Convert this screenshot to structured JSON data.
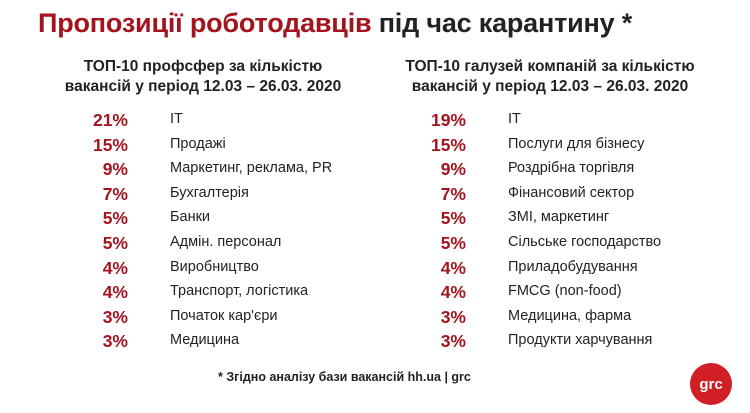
{
  "title": {
    "accent": "Пропозиції роботодавців",
    "rest": " під час карантину *"
  },
  "chart_data": [
    {
      "type": "table",
      "title": "ТОП-10 профсфер за кількістю вакансій у період 12.03 – 26.03. 2020",
      "title_lines": [
        "ТОП-10 профсфер за кількістю",
        "вакансій у період 12.03 – 26.03. 2020"
      ],
      "categories": [
        "IT",
        "Продажі",
        "Маркетинг, реклама, PR",
        "Бухгалтерія",
        "Банки",
        "Адмін. персонал",
        "Виробництво",
        "Транспорт, логістика",
        "Початок кар'єри",
        "Медицина"
      ],
      "values": [
        21,
        15,
        9,
        7,
        5,
        5,
        4,
        4,
        3,
        3
      ],
      "value_labels": [
        "21%",
        "15%",
        "9%",
        "7%",
        "5%",
        "5%",
        "4%",
        "4%",
        "3%",
        "3%"
      ]
    },
    {
      "type": "table",
      "title": "ТОП-10 галузей компаній за кількістю вакансій у період 12.03 – 26.03. 2020",
      "title_lines": [
        "ТОП-10 галузей компаній за кількістю",
        "вакансій у період 12.03 – 26.03. 2020"
      ],
      "categories": [
        "IT",
        "Послуги для бізнесу",
        "Роздрібна торгівля",
        "Фінансовий сектор",
        "ЗМІ, маркетинг",
        "Сільське господарство",
        "Приладобудування",
        "FMCG (non-food)",
        "Медицина, фарма",
        "Продукти харчування"
      ],
      "values": [
        19,
        15,
        9,
        7,
        5,
        5,
        4,
        4,
        3,
        3
      ],
      "value_labels": [
        "19%",
        "15%",
        "9%",
        "7%",
        "5%",
        "5%",
        "4%",
        "4%",
        "3%",
        "3%"
      ]
    }
  ],
  "footnote": "* Згідно аналізу бази вакансій hh.ua | grc",
  "logo": "grc",
  "colors": {
    "accent": "#a3141e",
    "logo_bg": "#d21f26",
    "text": "#222222"
  }
}
